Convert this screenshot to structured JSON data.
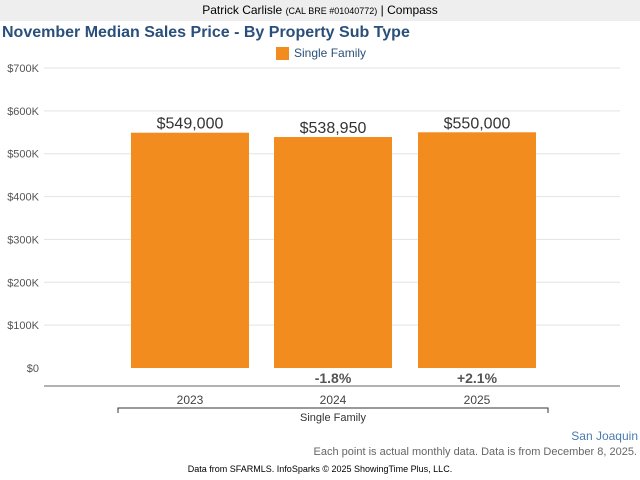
{
  "header": {
    "agent_name": "Patrick Carlisle",
    "license": "(CAL BRE #01040772)",
    "separator": "|",
    "brokerage": "Compass"
  },
  "chart_data": {
    "type": "bar",
    "title": "November Median Sales Price - By Property Sub Type",
    "categories": [
      "2023",
      "2024",
      "2025"
    ],
    "series": [
      {
        "name": "Single Family",
        "values": [
          549000,
          538950,
          550000
        ],
        "color": "#f28c1e"
      }
    ],
    "data_labels": [
      "$549,000",
      "$538,950",
      "$550,000"
    ],
    "change_labels": [
      "",
      "-1.8%",
      "+2.1%"
    ],
    "ylim": [
      0,
      700000
    ],
    "y_ticks": [
      0,
      100000,
      200000,
      300000,
      400000,
      500000,
      600000,
      700000
    ],
    "y_tick_labels": [
      "$0",
      "$100K",
      "$200K",
      "$300K",
      "$400K",
      "$500K",
      "$600K",
      "$700K"
    ],
    "group_label": "Single Family",
    "xlabel": "",
    "ylabel": "",
    "grid": true,
    "legend_position": "top"
  },
  "footer": {
    "region": "San Joaquin",
    "note": "Each point is actual monthly data. Data is from December 8, 2025.",
    "credit": "Data from SFARMLS. InfoSparks © 2025 ShowingTime Plus, LLC."
  }
}
